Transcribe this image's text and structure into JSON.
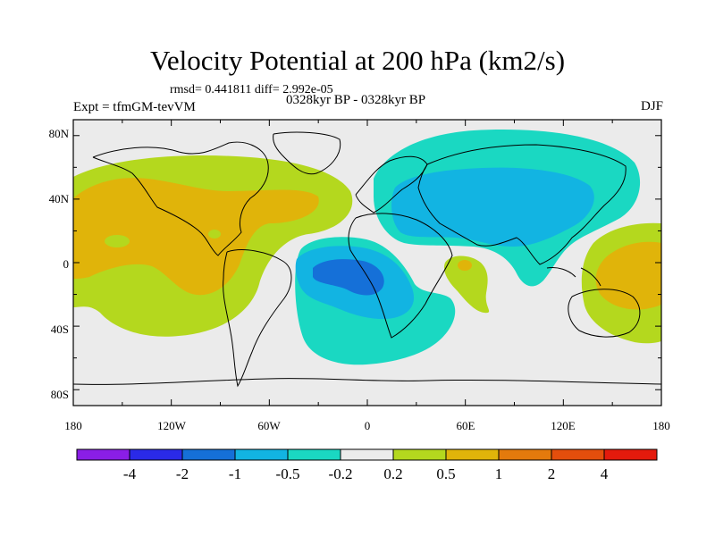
{
  "header": {
    "title": "Velocity Potential at 200 hPa (km2/s)",
    "stats": "rmsd= 0.441811 diff= 2.992e-05",
    "experiment": "Expt = tfmGM-tevVM",
    "period": "0328kyr BP - 0328kyr BP",
    "season": "DJF"
  },
  "axes": {
    "lat_labels": [
      "80N",
      "40N",
      "0",
      "40S",
      "80S"
    ],
    "lon_labels": [
      "180",
      "120W",
      "60W",
      "0",
      "60E",
      "120E",
      "180"
    ]
  },
  "colorbar": {
    "colors": [
      "#8a1ee6",
      "#2a2ae8",
      "#1570d8",
      "#12b4e2",
      "#1ad8c2",
      "#ebebeb",
      "#b4d81e",
      "#e0b40a",
      "#e47a0c",
      "#e44e0c",
      "#e41a0c"
    ],
    "labels": [
      "-4",
      "-2",
      "-1",
      "-0.5",
      "-0.2",
      "0.2",
      "0.5",
      "1",
      "2",
      "4"
    ]
  },
  "legend_colors": {
    "orange": "#e0b40a",
    "yellow_green": "#b4d81e",
    "teal": "#1ad8c2",
    "light_blue": "#12b4e2",
    "blue": "#1570d8",
    "background": "#ebebeb"
  }
}
